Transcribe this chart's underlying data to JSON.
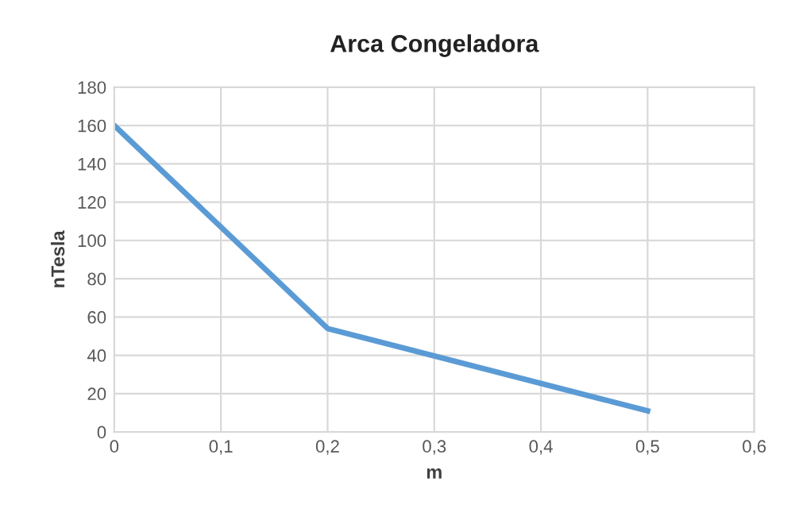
{
  "chart_data": {
    "type": "line",
    "title": "Arca Congeladora",
    "xlabel": "m",
    "ylabel": "nTesla",
    "x": [
      0,
      0.2,
      0.5
    ],
    "series": [
      {
        "color": "#5b9bd5",
        "values": [
          160,
          54,
          11
        ]
      }
    ],
    "xlim": [
      0,
      0.6
    ],
    "xticks": [
      0,
      {
        "value": 0.1,
        "label": "0,1"
      },
      {
        "value": 0.2,
        "label": "0,2"
      },
      {
        "value": 0.3,
        "label": "0,3"
      },
      {
        "value": 0.4,
        "label": "0,4"
      },
      {
        "value": 0.5,
        "label": "0,5"
      },
      {
        "value": 0.6,
        "label": "0,6"
      }
    ],
    "ylim": [
      0,
      180
    ],
    "yticks": [
      0,
      20,
      40,
      60,
      80,
      100,
      120,
      140,
      160,
      180
    ],
    "grid": true,
    "marker": "none",
    "line_style": "solid"
  }
}
